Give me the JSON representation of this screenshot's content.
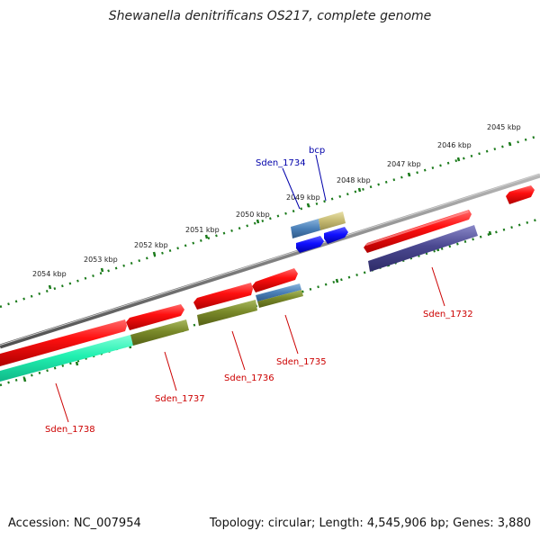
{
  "title": "Shewanella denitrificans OS217, complete genome",
  "footer": {
    "accession": "Accession: NC_007954",
    "summary": "Topology: circular; Length: 4,545,906 bp; Genes: 3,880"
  },
  "colors": {
    "backbone": "#808080",
    "tick": "#1a7a1a",
    "label_red": "#cc0000",
    "label_blue": "#0000aa"
  },
  "ruler": [
    {
      "label": "2045 kbp"
    },
    {
      "label": "2046 kbp"
    },
    {
      "label": "2047 kbp"
    },
    {
      "label": "2048 kbp"
    },
    {
      "label": "2049 kbp"
    },
    {
      "label": "2050 kbp"
    },
    {
      "label": "2051 kbp"
    },
    {
      "label": "2052 kbp"
    },
    {
      "label": "2053 kbp"
    },
    {
      "label": "2054 kbp"
    }
  ],
  "genes": [
    {
      "label": "Sden_1738",
      "color": "#cc0000"
    },
    {
      "label": "Sden_1737",
      "color": "#cc0000"
    },
    {
      "label": "Sden_1736",
      "color": "#cc0000"
    },
    {
      "label": "Sden_1735",
      "color": "#cc0000"
    },
    {
      "label": "Sden_1734",
      "color": "#0000aa"
    },
    {
      "label": "bcp",
      "color": "#0000aa"
    },
    {
      "label": "Sden_1732",
      "color": "#cc0000"
    }
  ]
}
